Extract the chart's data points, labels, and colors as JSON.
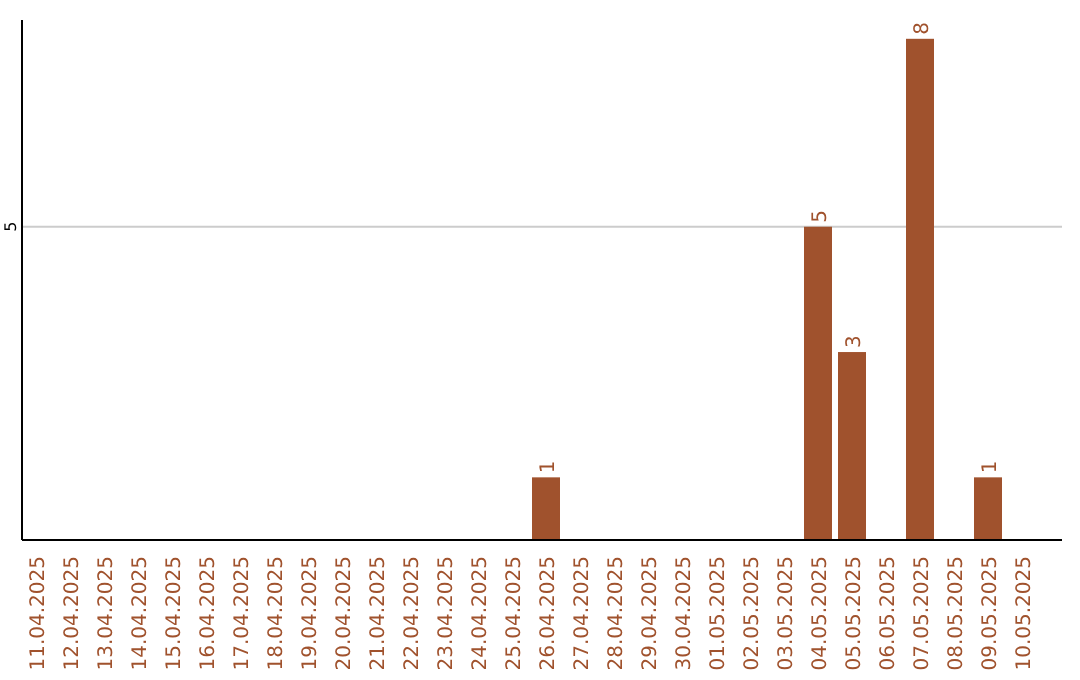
{
  "chart_data": {
    "type": "bar",
    "ylim": [
      0,
      8.3
    ],
    "categories": [
      "11.04.2025",
      "12.04.2025",
      "13.04.2025",
      "14.04.2025",
      "15.04.2025",
      "16.04.2025",
      "17.04.2025",
      "18.04.2025",
      "19.04.2025",
      "20.04.2025",
      "21.04.2025",
      "22.04.2025",
      "23.04.2025",
      "24.04.2025",
      "25.04.2025",
      "26.04.2025",
      "27.04.2025",
      "28.04.2025",
      "29.04.2025",
      "30.04.2025",
      "01.05.2025",
      "02.05.2025",
      "03.05.2025",
      "04.05.2025",
      "05.05.2025",
      "06.05.2025",
      "07.05.2025",
      "08.05.2025",
      "09.05.2025",
      "10.05.2025"
    ],
    "values": [
      null,
      null,
      null,
      null,
      null,
      null,
      null,
      null,
      null,
      null,
      null,
      null,
      null,
      null,
      null,
      1,
      null,
      null,
      null,
      null,
      null,
      null,
      null,
      5,
      3,
      null,
      8,
      null,
      1,
      null
    ],
    "value_labels": [
      null,
      null,
      null,
      null,
      null,
      null,
      null,
      null,
      null,
      null,
      null,
      null,
      null,
      null,
      null,
      "1",
      null,
      null,
      null,
      null,
      null,
      null,
      null,
      "5",
      "3",
      null,
      "8",
      null,
      "1",
      null
    ],
    "color": "#a0522d",
    "ref_lines": [
      {
        "axis": "y",
        "value": 5,
        "label": "5",
        "color": "#cccccc"
      }
    ]
  }
}
